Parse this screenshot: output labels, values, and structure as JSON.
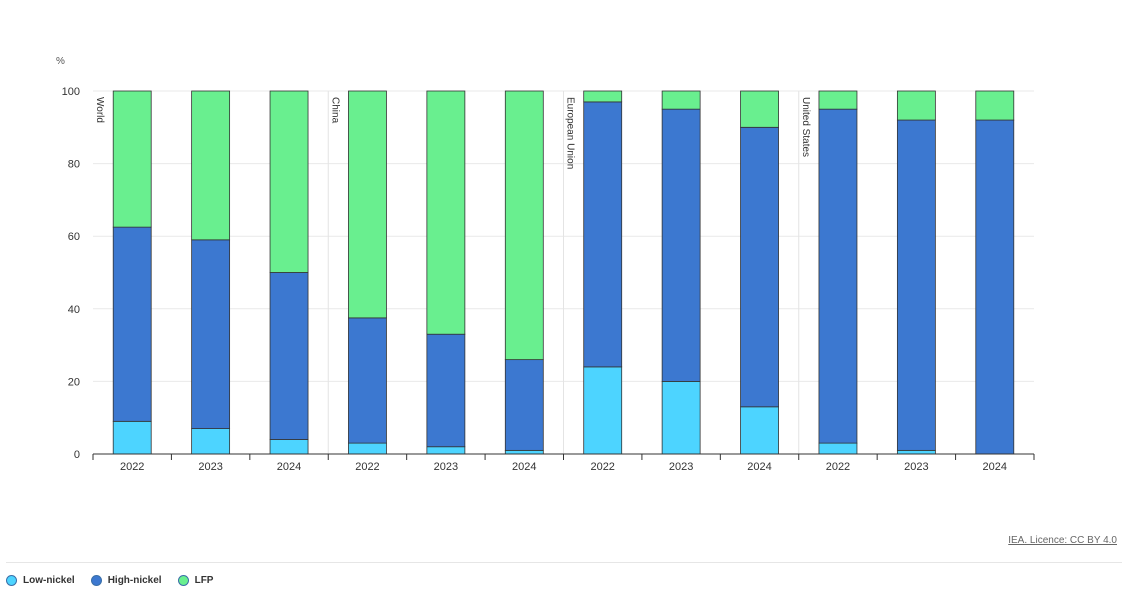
{
  "chart_data": {
    "type": "bar",
    "stacked": true,
    "unit_label": "%",
    "ylim": [
      0,
      100
    ],
    "yticks": [
      0,
      20,
      40,
      60,
      80,
      100
    ],
    "grid": true,
    "legend_position": "bottom-left",
    "groups": [
      {
        "label": "World",
        "categories": [
          "2022",
          "2023",
          "2024"
        ]
      },
      {
        "label": "China",
        "categories": [
          "2022",
          "2023",
          "2024"
        ]
      },
      {
        "label": "European Union",
        "categories": [
          "2022",
          "2023",
          "2024"
        ]
      },
      {
        "label": "United States",
        "categories": [
          "2022",
          "2023",
          "2024"
        ]
      }
    ],
    "series": [
      {
        "name": "Low-nickel",
        "color": "#4dd4ff",
        "values": [
          9,
          7,
          4,
          3,
          2,
          1,
          24,
          20,
          13,
          3,
          1,
          0
        ]
      },
      {
        "name": "High-nickel",
        "color": "#3c78d0",
        "values": [
          53.5,
          52,
          46,
          34.5,
          31,
          25,
          73,
          75,
          77,
          92,
          91,
          92
        ]
      },
      {
        "name": "LFP",
        "color": "#69ef8f",
        "values": [
          37.5,
          41,
          50,
          62.5,
          67,
          74,
          3,
          5,
          10,
          5,
          8,
          8
        ]
      }
    ]
  },
  "credit": "IEA. Licence: CC BY 4.0"
}
